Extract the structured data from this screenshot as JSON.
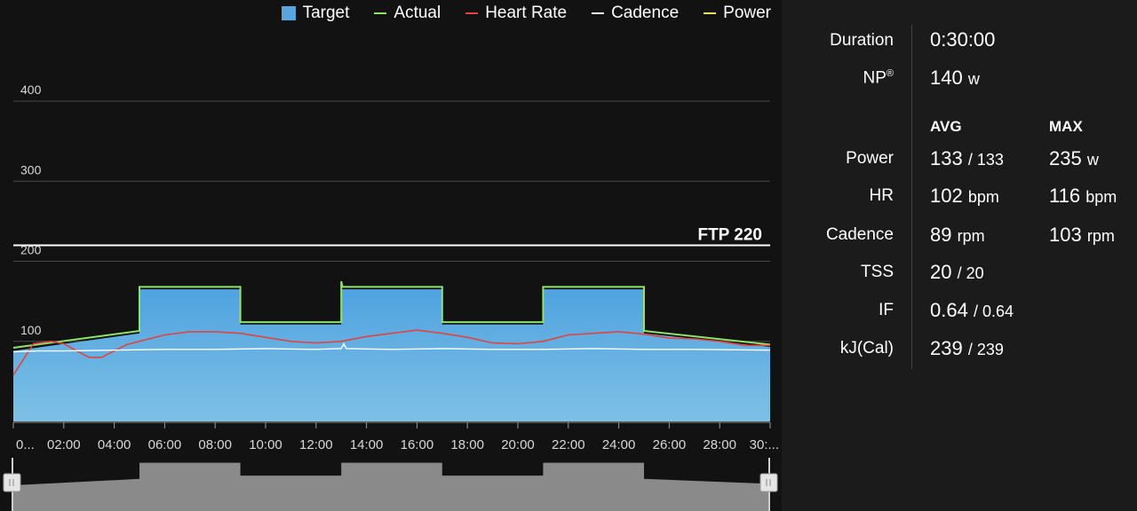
{
  "legend": [
    {
      "label": "Target",
      "color": "#5aa6dc",
      "kind": "box"
    },
    {
      "label": "Actual",
      "color": "#8fe36a",
      "kind": "line"
    },
    {
      "label": "Heart Rate",
      "color": "#e0443f",
      "kind": "line"
    },
    {
      "label": "Cadence",
      "color": "#ffffff",
      "kind": "line"
    },
    {
      "label": "Power",
      "color": "#f5e86e",
      "kind": "line"
    }
  ],
  "chart_data": {
    "type": "area",
    "ylim": [
      0,
      400
    ],
    "yticks": [
      "100",
      "200",
      "300",
      "400"
    ],
    "ytick_values": [
      100,
      200,
      300,
      400
    ],
    "xlim": [
      0,
      30
    ],
    "xtick_labels": [
      "0...",
      "02:00",
      "04:00",
      "06:00",
      "08:00",
      "10:00",
      "12:00",
      "14:00",
      "16:00",
      "18:00",
      "20:00",
      "22:00",
      "24:00",
      "26:00",
      "28:00",
      "30:..."
    ],
    "xtick_values": [
      0,
      2,
      4,
      6,
      8,
      10,
      12,
      14,
      16,
      18,
      20,
      22,
      24,
      26,
      28,
      30
    ],
    "ftp_label": "FTP 220",
    "ftp_value": 220,
    "series": [
      {
        "name": "Target",
        "x": [
          0,
          5,
          5,
          9,
          9,
          13,
          13,
          17,
          17,
          21,
          21,
          25,
          25,
          30
        ],
        "y": [
          88,
          110,
          165,
          165,
          121,
          121,
          165,
          165,
          121,
          121,
          165,
          165,
          110,
          93
        ]
      },
      {
        "name": "Actual",
        "x": [
          0,
          5,
          5,
          9,
          9,
          13,
          13,
          13.05,
          13.1,
          17,
          17,
          21,
          21,
          25,
          25,
          30
        ],
        "y": [
          92,
          113,
          168,
          168,
          124,
          124,
          175,
          168,
          168,
          168,
          124,
          124,
          168,
          168,
          113,
          96
        ]
      },
      {
        "name": "Heart Rate",
        "x": [
          0,
          0.8,
          1.5,
          2,
          3,
          3.5,
          4.5,
          6,
          7,
          8,
          9,
          11,
          12,
          13,
          14,
          15,
          16,
          17,
          18,
          19,
          20,
          21,
          22,
          23,
          24,
          25,
          26,
          27,
          28,
          29,
          30
        ],
        "y": [
          58,
          97,
          100,
          97,
          80,
          80,
          96,
          108,
          112,
          112,
          110,
          100,
          98,
          100,
          106,
          110,
          114,
          110,
          105,
          98,
          97,
          100,
          108,
          110,
          112,
          109,
          104,
          103,
          100,
          95,
          95
        ]
      },
      {
        "name": "Cadence",
        "x": [
          0,
          1,
          2,
          4,
          6,
          8,
          10,
          12,
          13,
          13.1,
          13.2,
          15,
          17,
          19,
          21,
          23,
          25,
          27,
          30
        ],
        "y": [
          87,
          88,
          88,
          89,
          90,
          90,
          91,
          90,
          91,
          97,
          91,
          90,
          91,
          90,
          90,
          91,
          90,
          90,
          89
        ]
      }
    ]
  },
  "stats": {
    "duration_label": "Duration",
    "duration_value": "0:30:00",
    "np_label": "NP",
    "np_symbol": "®",
    "np_value": "140",
    "np_unit": "w",
    "avg_header": "AVG",
    "max_header": "MAX",
    "rows": [
      {
        "label": "Power",
        "avg": "133",
        "avg_extra": "/ 133",
        "max": "235",
        "max_unit": "w"
      },
      {
        "label": "HR",
        "avg": "102",
        "avg_extra": "bpm",
        "max": "116",
        "max_unit": "bpm"
      },
      {
        "label": "Cadence",
        "avg": "89",
        "avg_extra": "rpm",
        "max": "103",
        "max_unit": "rpm"
      },
      {
        "label": "TSS",
        "avg": "20",
        "avg_extra": "/ 20",
        "max": "",
        "max_unit": ""
      },
      {
        "label": "IF",
        "avg": "0.64",
        "avg_extra": "/ 0.64",
        "max": "",
        "max_unit": ""
      },
      {
        "label": "kJ(Cal)",
        "avg": "239",
        "avg_extra": "/ 239",
        "max": "",
        "max_unit": ""
      }
    ]
  }
}
